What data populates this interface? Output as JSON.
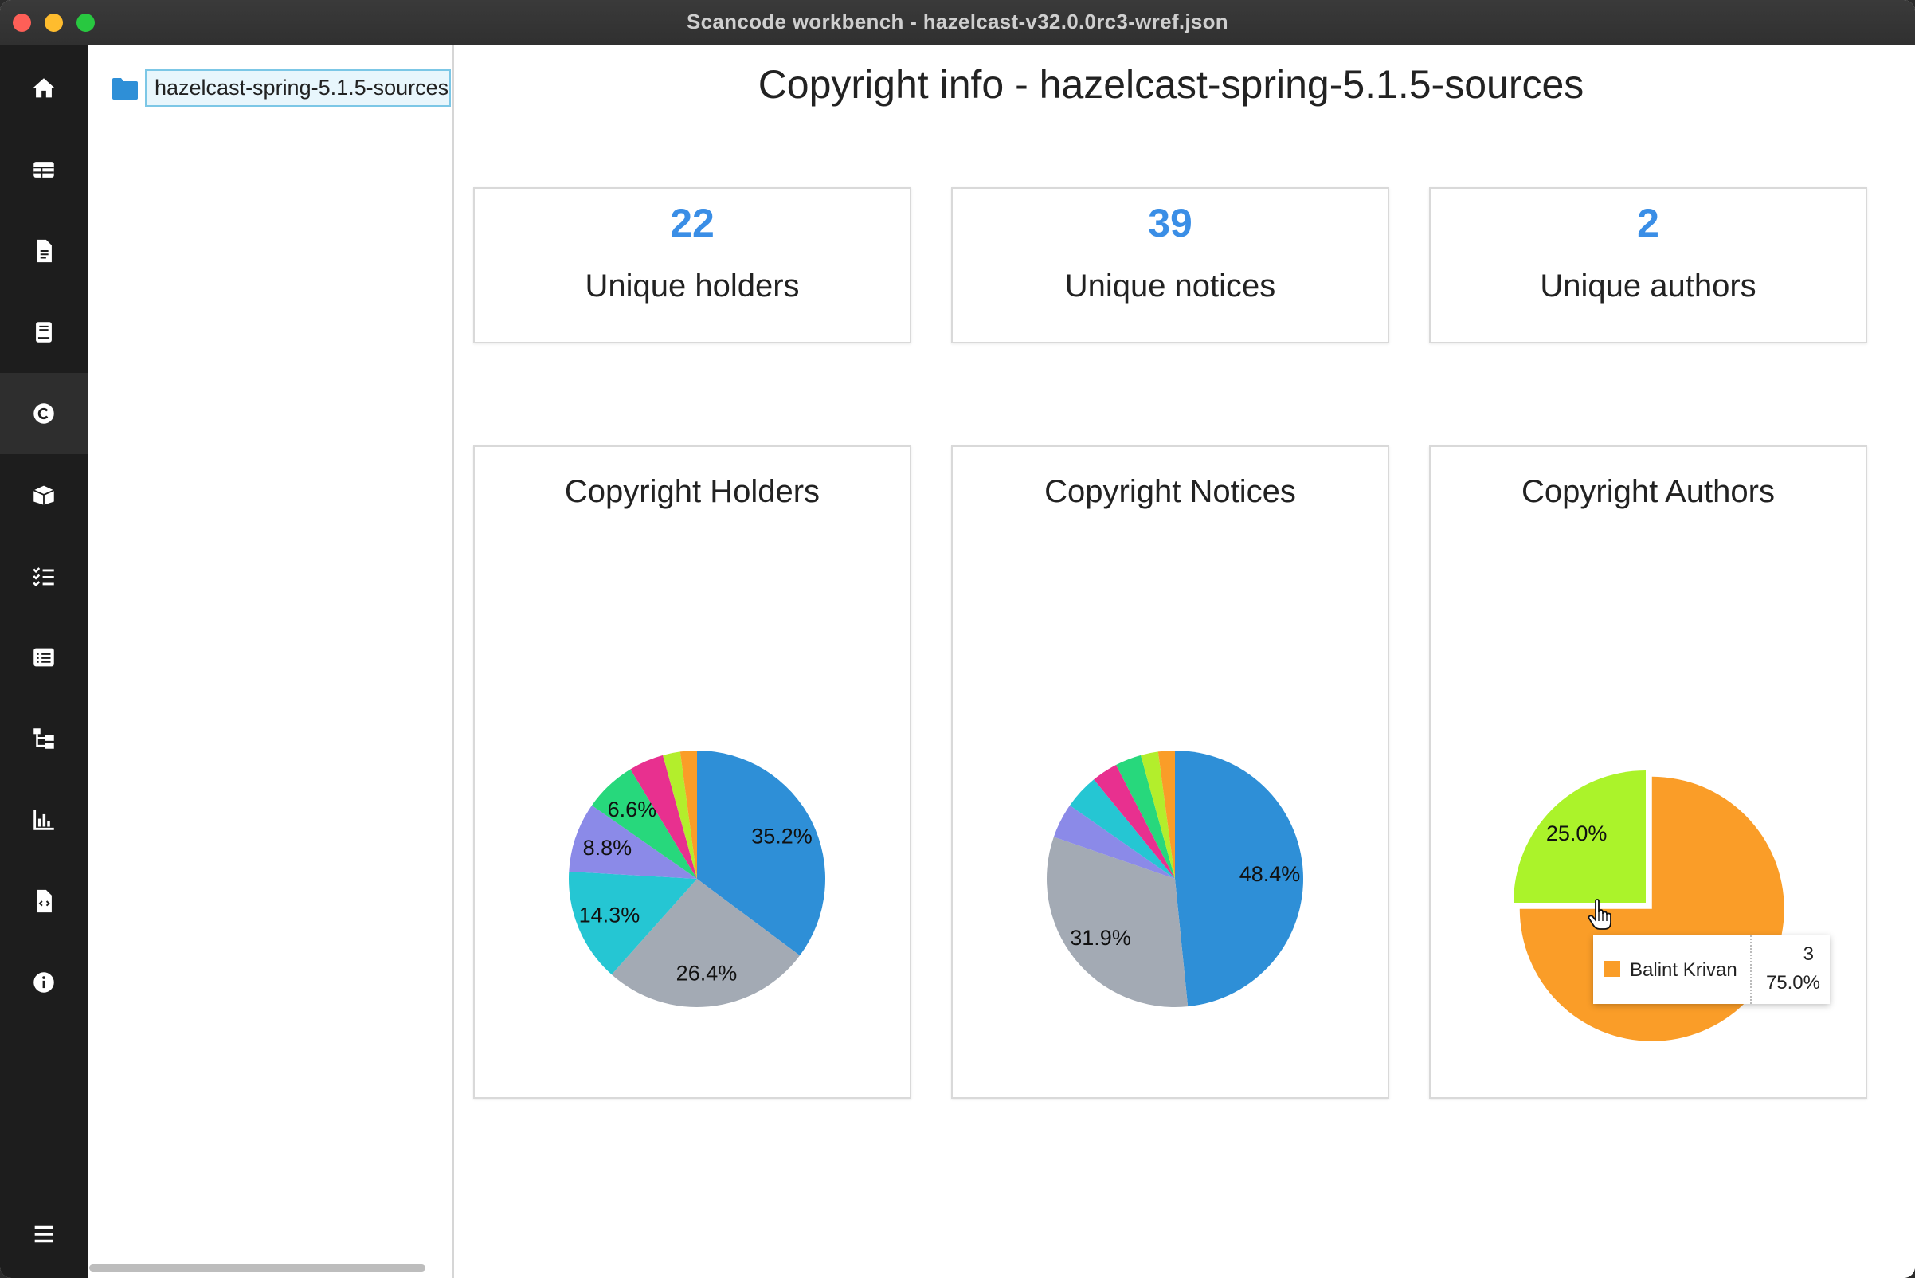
{
  "window": {
    "title": "Scancode workbench - hazelcast-v32.0.0rc3-wref.json"
  },
  "sidebar": {
    "items": [
      {
        "name": "home-icon",
        "active": false
      },
      {
        "name": "table-icon",
        "active": false
      },
      {
        "name": "file-info-icon",
        "active": false
      },
      {
        "name": "book-icon",
        "active": false
      },
      {
        "name": "copyright-icon",
        "active": true
      },
      {
        "name": "package-box-icon",
        "active": false
      },
      {
        "name": "checklist-icon",
        "active": false
      },
      {
        "name": "list-icon",
        "active": false
      },
      {
        "name": "tree-structure-icon",
        "active": false
      },
      {
        "name": "bar-chart-icon",
        "active": false
      },
      {
        "name": "code-file-icon",
        "active": false
      },
      {
        "name": "info-icon",
        "active": false
      }
    ],
    "menu_icon": "hamburger-menu-icon"
  },
  "tree": {
    "root_label": "hazelcast-spring-5.1.5-sources"
  },
  "main": {
    "title": "Copyright info - hazelcast-spring-5.1.5-sources",
    "stats": [
      {
        "value": "22",
        "label": "Unique holders"
      },
      {
        "value": "39",
        "label": "Unique notices"
      },
      {
        "value": "2",
        "label": "Unique authors"
      }
    ]
  },
  "chart_data": [
    {
      "type": "pie",
      "title": "Copyright Holders",
      "slices": [
        {
          "label": "35.2%",
          "value": 35.2,
          "color": "#2e8fd7"
        },
        {
          "label": "26.4%",
          "value": 26.4,
          "color": "#a3aab4"
        },
        {
          "label": "14.3%",
          "value": 14.3,
          "color": "#25c6d3"
        },
        {
          "label": "8.8%",
          "value": 8.8,
          "color": "#8b8ae8"
        },
        {
          "label": "6.6%",
          "value": 6.6,
          "color": "#27d87c"
        },
        {
          "label": "",
          "value": 4.4,
          "color": "#e8308f"
        },
        {
          "label": "",
          "value": 2.2,
          "color": "#b3ee2c"
        },
        {
          "label": "",
          "value": 2.1,
          "color": "#fa9d28"
        }
      ]
    },
    {
      "type": "pie",
      "title": "Copyright Notices",
      "slices": [
        {
          "label": "48.4%",
          "value": 48.4,
          "color": "#2e8fd7"
        },
        {
          "label": "31.9%",
          "value": 31.9,
          "color": "#a3aab4"
        },
        {
          "label": "",
          "value": 4.4,
          "color": "#8b8ae8"
        },
        {
          "label": "",
          "value": 4.4,
          "color": "#25c6d3"
        },
        {
          "label": "",
          "value": 3.3,
          "color": "#e8308f"
        },
        {
          "label": "",
          "value": 3.3,
          "color": "#27d87c"
        },
        {
          "label": "",
          "value": 2.2,
          "color": "#b3ee2c"
        },
        {
          "label": "",
          "value": 2.1,
          "color": "#fa9d28"
        }
      ]
    },
    {
      "type": "pie",
      "title": "Copyright Authors",
      "slices": [
        {
          "label": "75.0%",
          "value": 75.0,
          "color": "#fa9d28",
          "exploded": true
        },
        {
          "label": "25.0%",
          "value": 25.0,
          "color": "#abf32a"
        }
      ],
      "tooltip": {
        "name": "Balint Krivan",
        "value": "3",
        "percent": "75.0%",
        "color": "#fa9d28"
      }
    }
  ]
}
